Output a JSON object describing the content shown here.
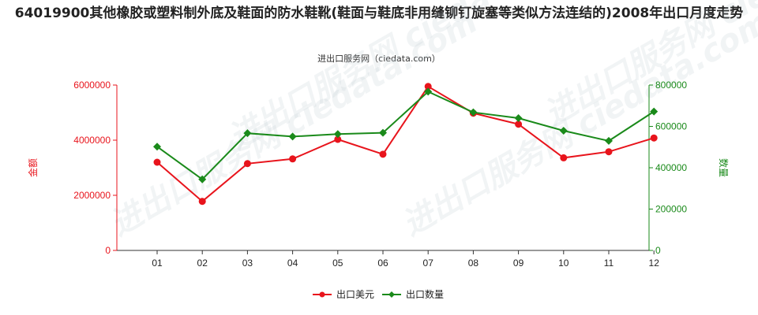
{
  "title": "64019900其他橡胶或塑料制外底及鞋面的防水鞋靴(鞋面与鞋底非用缝铆钉旋塞等类似方法连结的)2008年出口月度走势",
  "source": "进出口服务网（ciedata.com）",
  "watermark": "进出口服务网 ciedata.com",
  "chart_data": {
    "type": "line",
    "categories": [
      "01",
      "02",
      "03",
      "04",
      "05",
      "06",
      "07",
      "08",
      "09",
      "10",
      "11",
      "12"
    ],
    "y_left": {
      "label": "金额",
      "ylim": [
        0,
        6000000
      ],
      "ticks": [
        "0",
        "2000000",
        "4000000",
        "6000000"
      ],
      "color": "#e8141c"
    },
    "y_right": {
      "label": "数量",
      "ylim": [
        0,
        800000
      ],
      "ticks": [
        "0",
        "200000",
        "400000",
        "600000",
        "800000"
      ],
      "color": "#1a8a1a"
    },
    "series": [
      {
        "name": "出口美元",
        "axis": "left",
        "color": "#e8141c",
        "values": [
          3200000,
          1780000,
          3150000,
          3320000,
          4030000,
          3490000,
          5950000,
          4980000,
          4580000,
          3360000,
          3580000,
          4080000
        ]
      },
      {
        "name": "出口数量",
        "axis": "right",
        "color": "#1a8a1a",
        "values": [
          502000,
          344000,
          567000,
          551000,
          563000,
          569000,
          768000,
          668000,
          640000,
          579000,
          530000,
          672000
        ]
      }
    ],
    "grid": false,
    "legend_position": "bottom-center"
  }
}
